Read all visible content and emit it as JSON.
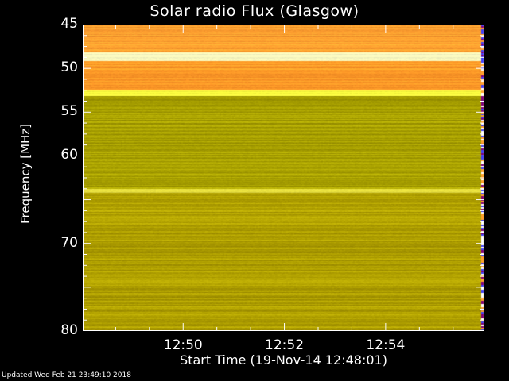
{
  "chart_data": {
    "type": "heatmap",
    "title": "Solar radio Flux (Glasgow)",
    "xlabel": "Start Time (19-Nov-14 12:48:01)",
    "ylabel": "Frequency [MHz]",
    "x_start": "12:48:01",
    "x_end": "12:55:57",
    "x_ticks": [
      "12:50",
      "12:52",
      "12:54"
    ],
    "ylim": [
      45,
      80
    ],
    "y_reversed": true,
    "y_ticks": [
      "45",
      "50",
      "55",
      "60",
      "70",
      "80"
    ],
    "bands": [
      {
        "from": 45,
        "to": 48.2,
        "color": "#ffa030"
      },
      {
        "from": 48.2,
        "to": 49.2,
        "color": "#ffffc0"
      },
      {
        "from": 49.2,
        "to": 52.5,
        "color": "#ff9a28"
      },
      {
        "from": 52.5,
        "to": 53.2,
        "color": "#ffff40"
      },
      {
        "from": 53.2,
        "to": 63.8,
        "color": "#a8a000"
      },
      {
        "from": 63.8,
        "to": 64.2,
        "color": "#e8e040"
      },
      {
        "from": 64.2,
        "to": 80,
        "color": "#b0a000"
      }
    ]
  },
  "footer": {
    "updated": "Updated Wed Feb 21 23:49:10 2018"
  }
}
